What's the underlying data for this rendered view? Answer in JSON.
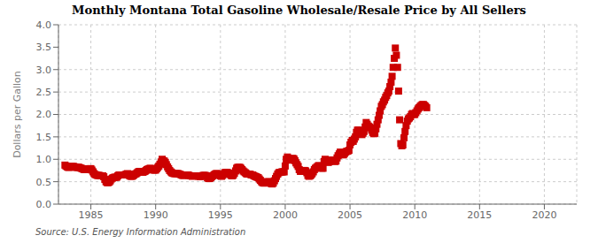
{
  "chart_data": {
    "type": "scatter",
    "title": "Monthly Montana Total Gasoline Wholesale/Resale Price by All Sellers",
    "y_label": "Dollars per Gallon",
    "annotation": "Source: U.S. Energy Information Administration",
    "color": "#cc0000",
    "marker": "square",
    "grid": true,
    "xlim": [
      1982.5,
      2022.5
    ],
    "ylim": [
      0.0,
      4.0
    ],
    "xticks": [
      1985,
      1990,
      1995,
      2000,
      2005,
      2010,
      2015,
      2020
    ],
    "yticks": [
      {
        "value": 0.0,
        "label": "0.0"
      },
      0.5,
      {
        "value": 1.0,
        "label": "1.0"
      },
      1.5,
      {
        "value": 2.0,
        "label": "2.0"
      },
      2.5,
      {
        "value": 3.0,
        "label": "3.0"
      },
      3.5,
      {
        "value": 4.0,
        "label": "4.0"
      }
    ],
    "x": [
      1983,
      1983.08,
      1983.17,
      1983.25,
      1983.33,
      1983.42,
      1983.5,
      1983.58,
      1983.67,
      1983.75,
      1983.83,
      1983.92,
      1984,
      1984.08,
      1984.17,
      1984.25,
      1984.33,
      1984.42,
      1984.5,
      1984.58,
      1984.67,
      1984.75,
      1984.83,
      1984.92,
      1985,
      1985.08,
      1985.17,
      1985.25,
      1985.33,
      1985.42,
      1985.5,
      1985.58,
      1985.67,
      1985.75,
      1985.83,
      1985.92,
      1986,
      1986.08,
      1986.17,
      1986.25,
      1986.33,
      1986.42,
      1986.5,
      1986.58,
      1986.67,
      1986.75,
      1986.83,
      1986.92,
      1987,
      1987.08,
      1987.17,
      1987.25,
      1987.33,
      1987.42,
      1987.5,
      1987.58,
      1987.67,
      1987.75,
      1987.83,
      1987.92,
      1988,
      1988.08,
      1988.17,
      1988.25,
      1988.33,
      1988.42,
      1988.5,
      1988.58,
      1988.67,
      1988.75,
      1988.83,
      1988.92,
      1989,
      1989.08,
      1989.17,
      1989.25,
      1989.33,
      1989.42,
      1989.5,
      1989.58,
      1989.67,
      1989.75,
      1989.83,
      1989.92,
      1990,
      1990.08,
      1990.17,
      1990.25,
      1990.33,
      1990.42,
      1990.5,
      1990.58,
      1990.67,
      1990.75,
      1990.83,
      1990.92,
      1991,
      1991.08,
      1991.17,
      1991.25,
      1991.33,
      1991.42,
      1991.5,
      1991.58,
      1991.67,
      1991.75,
      1991.83,
      1991.92,
      1992,
      1992.08,
      1992.17,
      1992.25,
      1992.33,
      1992.42,
      1992.5,
      1992.58,
      1992.67,
      1992.75,
      1992.83,
      1992.92,
      1993,
      1993.08,
      1993.17,
      1993.25,
      1993.33,
      1993.42,
      1993.5,
      1993.58,
      1993.67,
      1993.75,
      1993.83,
      1993.92,
      1994,
      1994.08,
      1994.17,
      1994.25,
      1994.33,
      1994.42,
      1994.5,
      1994.58,
      1994.67,
      1994.75,
      1994.83,
      1994.92,
      1995,
      1995.08,
      1995.17,
      1995.25,
      1995.33,
      1995.42,
      1995.5,
      1995.58,
      1995.67,
      1995.75,
      1995.83,
      1995.92,
      1996,
      1996.08,
      1996.17,
      1996.25,
      1996.33,
      1996.42,
      1996.5,
      1996.58,
      1996.67,
      1996.75,
      1996.83,
      1996.92,
      1997,
      1997.08,
      1997.17,
      1997.25,
      1997.33,
      1997.42,
      1997.5,
      1997.58,
      1997.67,
      1997.75,
      1997.83,
      1997.92,
      1998,
      1998.08,
      1998.17,
      1998.25,
      1998.33,
      1998.42,
      1998.5,
      1998.58,
      1998.67,
      1998.75,
      1998.83,
      1998.92,
      1999,
      1999.08,
      1999.17,
      1999.25,
      1999.33,
      1999.42,
      1999.5,
      1999.58,
      1999.67,
      1999.75,
      1999.83,
      1999.92,
      2000,
      2000.08,
      2000.17,
      2000.25,
      2000.33,
      2000.42,
      2000.5,
      2000.58,
      2000.67,
      2000.75,
      2000.83,
      2000.92,
      2001,
      2001.08,
      2001.17,
      2001.25,
      2001.33,
      2001.42,
      2001.5,
      2001.58,
      2001.67,
      2001.75,
      2001.83,
      2001.92,
      2002,
      2002.08,
      2002.17,
      2002.25,
      2002.33,
      2002.42,
      2002.5,
      2002.58,
      2002.67,
      2002.75,
      2002.83,
      2002.92,
      2003,
      2003.08,
      2003.17,
      2003.25,
      2003.33,
      2003.42,
      2003.5,
      2003.58,
      2003.67,
      2003.75,
      2003.83,
      2003.92,
      2004,
      2004.08,
      2004.17,
      2004.25,
      2004.33,
      2004.42,
      2004.5,
      2004.58,
      2004.67,
      2004.75,
      2004.83,
      2004.92,
      2005,
      2005.08,
      2005.17,
      2005.25,
      2005.33,
      2005.42,
      2005.5,
      2005.58,
      2005.67,
      2005.75,
      2005.83,
      2005.92,
      2006,
      2006.08,
      2006.17,
      2006.25,
      2006.33,
      2006.42,
      2006.5,
      2006.58,
      2006.67,
      2006.75,
      2006.83,
      2006.92,
      2007,
      2007.08,
      2007.17,
      2007.25,
      2007.33,
      2007.42,
      2007.5,
      2007.58,
      2007.67,
      2007.75,
      2007.83,
      2007.92,
      2008,
      2008.08,
      2008.17,
      2008.25,
      2008.33,
      2008.42,
      2008.5,
      2008.58,
      2008.67,
      2008.75,
      2008.83,
      2008.92,
      2009,
      2009.08,
      2009.17,
      2009.25,
      2009.33,
      2009.42,
      2009.5,
      2009.58,
      2009.67,
      2009.75,
      2009.83,
      2009.92,
      2010,
      2010.08,
      2010.17,
      2010.25,
      2010.33,
      2010.42,
      2010.5,
      2010.58,
      2010.67,
      2010.75,
      2010.83,
      2010.92
    ],
    "values": [
      0.87,
      0.85,
      0.83,
      0.82,
      0.82,
      0.83,
      0.84,
      0.84,
      0.84,
      0.83,
      0.82,
      0.82,
      0.82,
      0.82,
      0.81,
      0.8,
      0.79,
      0.78,
      0.77,
      0.77,
      0.78,
      0.78,
      0.78,
      0.79,
      0.79,
      0.76,
      0.72,
      0.68,
      0.66,
      0.65,
      0.64,
      0.64,
      0.64,
      0.63,
      0.63,
      0.63,
      0.61,
      0.55,
      0.5,
      0.48,
      0.48,
      0.49,
      0.52,
      0.56,
      0.58,
      0.59,
      0.6,
      0.6,
      0.6,
      0.63,
      0.65,
      0.65,
      0.65,
      0.65,
      0.65,
      0.65,
      0.66,
      0.67,
      0.68,
      0.67,
      0.63,
      0.62,
      0.62,
      0.63,
      0.65,
      0.67,
      0.68,
      0.7,
      0.72,
      0.73,
      0.72,
      0.72,
      0.71,
      0.72,
      0.73,
      0.75,
      0.77,
      0.78,
      0.79,
      0.8,
      0.79,
      0.77,
      0.76,
      0.76,
      0.76,
      0.79,
      0.82,
      0.85,
      0.89,
      0.94,
      1.0,
      0.97,
      0.96,
      0.93,
      0.88,
      0.83,
      0.79,
      0.75,
      0.72,
      0.7,
      0.69,
      0.68,
      0.68,
      0.68,
      0.68,
      0.68,
      0.67,
      0.66,
      0.65,
      0.64,
      0.64,
      0.65,
      0.65,
      0.65,
      0.65,
      0.64,
      0.63,
      0.63,
      0.62,
      0.63,
      0.63,
      0.63,
      0.63,
      0.63,
      0.62,
      0.61,
      0.62,
      0.63,
      0.64,
      0.64,
      0.64,
      0.63,
      0.59,
      0.57,
      0.57,
      0.59,
      0.61,
      0.63,
      0.65,
      0.67,
      0.68,
      0.68,
      0.67,
      0.65,
      0.63,
      0.62,
      0.64,
      0.67,
      0.7,
      0.71,
      0.71,
      0.7,
      0.68,
      0.66,
      0.64,
      0.63,
      0.65,
      0.69,
      0.74,
      0.8,
      0.82,
      0.82,
      0.82,
      0.8,
      0.77,
      0.74,
      0.72,
      0.7,
      0.68,
      0.67,
      0.67,
      0.67,
      0.66,
      0.65,
      0.65,
      0.63,
      0.62,
      0.61,
      0.6,
      0.59,
      0.56,
      0.53,
      0.5,
      0.48,
      0.47,
      0.47,
      0.48,
      0.49,
      0.5,
      0.5,
      0.48,
      0.46,
      0.45,
      0.47,
      0.52,
      0.57,
      0.62,
      0.67,
      0.7,
      0.71,
      0.71,
      0.72,
      0.72,
      0.72,
      0.85,
      1.0,
      1.05,
      1.02,
      0.98,
      1.0,
      1.01,
      1.02,
      1.01,
      0.97,
      0.92,
      0.88,
      0.84,
      0.77,
      0.73,
      0.74,
      0.74,
      0.75,
      0.75,
      0.74,
      0.7,
      0.64,
      0.62,
      0.63,
      0.65,
      0.68,
      0.72,
      0.77,
      0.8,
      0.82,
      0.84,
      0.86,
      0.85,
      0.83,
      0.8,
      0.8,
      0.95,
      1.0,
      0.98,
      0.94,
      0.93,
      0.95,
      0.97,
      0.98,
      0.98,
      0.97,
      0.95,
      0.96,
      1.03,
      1.08,
      1.12,
      1.16,
      1.14,
      1.1,
      1.1,
      1.13,
      1.16,
      1.18,
      1.18,
      1.2,
      1.32,
      1.38,
      1.42,
      1.4,
      1.45,
      1.5,
      1.6,
      1.65,
      1.65,
      1.62,
      1.58,
      1.55,
      1.58,
      1.62,
      1.72,
      1.82,
      1.78,
      1.74,
      1.72,
      1.7,
      1.65,
      1.6,
      1.57,
      1.58,
      1.68,
      1.78,
      1.88,
      1.98,
      2.08,
      2.18,
      2.22,
      2.28,
      2.32,
      2.38,
      2.42,
      2.48,
      2.52,
      2.62,
      2.72,
      2.85,
      3.05,
      3.25,
      3.48,
      3.32,
      3.05,
      2.52,
      1.88,
      1.35,
      1.3,
      1.32,
      1.48,
      1.62,
      1.75,
      1.85,
      1.9,
      1.92,
      1.95,
      2.0,
      2.02,
      2.0,
      2.0,
      2.04,
      2.08,
      2.12,
      2.15,
      2.18,
      2.2,
      2.22,
      2.22,
      2.2,
      2.18,
      2.15
    ]
  }
}
